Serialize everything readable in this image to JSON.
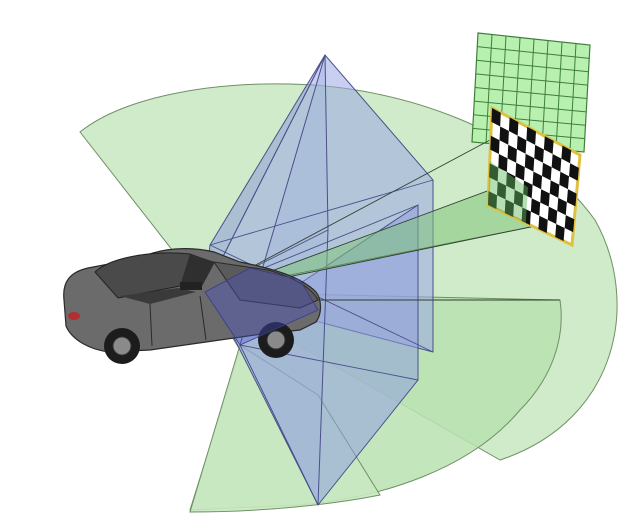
{
  "figure": {
    "palette": {
      "lidar_fill": "#c8e8c0",
      "lidar_stroke": "#6f8f66",
      "camera_fill": "#9aa8e6",
      "camera_stroke": "#4b4f8a",
      "lidar_target_fill": "#b8f0b0",
      "lidar_target_grid": "#3f7f3a",
      "checker_dark": "#111111",
      "checker_light": "#ffffff",
      "checker_frame": "#e0c040",
      "car_body": "#6b6b6b",
      "car_shadow": "#3a3a3a"
    },
    "icons": {
      "vehicle": "car-icon",
      "lidar_target": "lidar-grid-target-icon",
      "camera_target": "checkerboard-target-icon"
    },
    "targets": {
      "lidar_grid_cells": [
        8,
        8
      ],
      "checkerboard_cells": [
        10,
        7
      ]
    }
  }
}
